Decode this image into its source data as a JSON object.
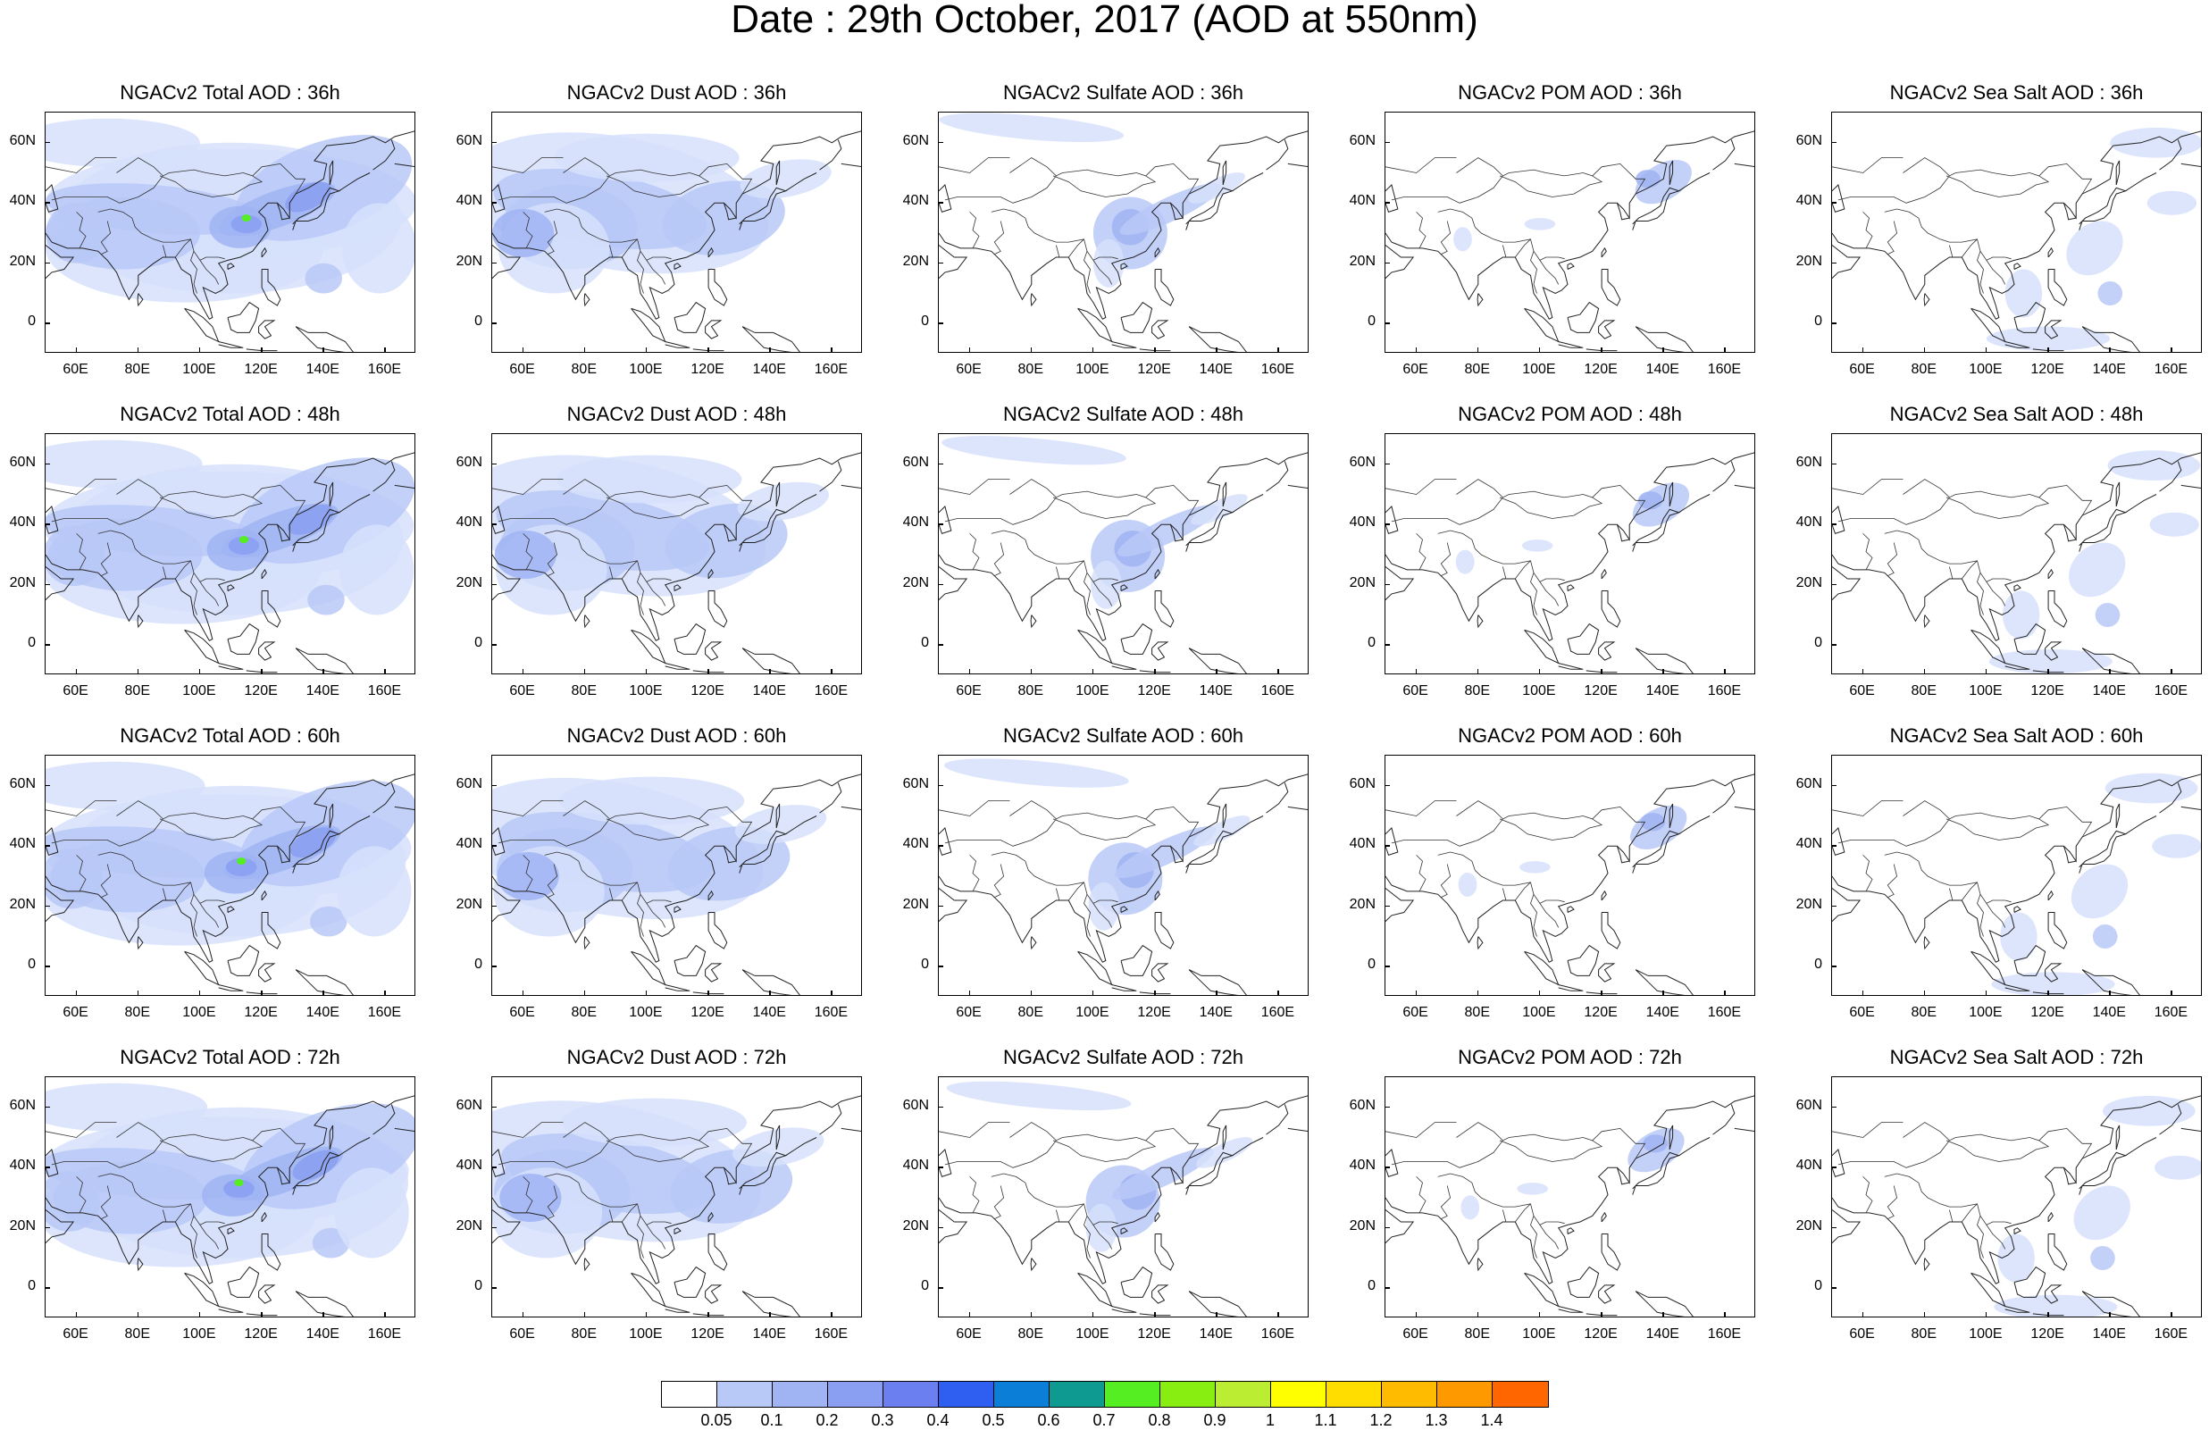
{
  "title": "Date : 29th October, 2017 (AOD at 550nm)",
  "rows": [
    {
      "panels": [
        {
          "title": "NGACv2 Total AOD : 36h",
          "species": "total"
        },
        {
          "title": "NGACv2 Dust AOD : 36h",
          "species": "dust"
        },
        {
          "title": "NGACv2 Sulfate AOD : 36h",
          "species": "sulfate"
        },
        {
          "title": "NGACv2 POM AOD : 36h",
          "species": "pom"
        },
        {
          "title": "NGACv2 Sea Salt AOD : 36h",
          "species": "seasalt"
        }
      ]
    },
    {
      "panels": [
        {
          "title": "NGACv2 Total AOD : 48h",
          "species": "total"
        },
        {
          "title": "NGACv2 Dust AOD : 48h",
          "species": "dust"
        },
        {
          "title": "NGACv2 Sulfate AOD : 48h",
          "species": "sulfate"
        },
        {
          "title": "NGACv2 POM AOD : 48h",
          "species": "pom"
        },
        {
          "title": "NGACv2 Sea Salt AOD : 48h",
          "species": "seasalt"
        }
      ]
    },
    {
      "panels": [
        {
          "title": "NGACv2 Total AOD : 60h",
          "species": "total"
        },
        {
          "title": "NGACv2 Dust AOD : 60h",
          "species": "dust"
        },
        {
          "title": "NGACv2 Sulfate AOD : 60h",
          "species": "sulfate"
        },
        {
          "title": "NGACv2 POM AOD : 60h",
          "species": "pom"
        },
        {
          "title": "NGACv2 Sea Salt AOD : 60h",
          "species": "seasalt"
        }
      ]
    },
    {
      "panels": [
        {
          "title": "NGACv2 Total AOD : 72h",
          "species": "total"
        },
        {
          "title": "NGACv2 Dust AOD : 72h",
          "species": "dust"
        },
        {
          "title": "NGACv2 Sulfate AOD : 72h",
          "species": "sulfate"
        },
        {
          "title": "NGACv2 POM AOD : 72h",
          "species": "pom"
        },
        {
          "title": "NGACv2 Sea Salt  AOD : 72h",
          "species": "seasalt"
        }
      ]
    }
  ],
  "lat_labels": [
    "60N",
    "40N",
    "20N",
    "0"
  ],
  "lon_labels": [
    "60E",
    "80E",
    "100E",
    "120E",
    "140E",
    "160E"
  ],
  "colorbar": {
    "colors": [
      "#ffffff",
      "#d6e0fb",
      "#b8c8f7",
      "#a0b4f3",
      "#8a9ff1",
      "#6b7ff0",
      "#2f5ff0",
      "#0b7fd8",
      "#0e9a90",
      "#55ee22",
      "#88ee11",
      "#bbee33",
      "#ffff00",
      "#ffdd00",
      "#ffbb00",
      "#ff9900",
      "#ff6600",
      "#ff2200"
    ],
    "labels": [
      "0.05",
      "0.1",
      "0.2",
      "0.3",
      "0.4",
      "0.5",
      "0.6",
      "0.7",
      "0.8",
      "0.9",
      "1",
      "1.1",
      "1.2",
      "1.3",
      "1.4"
    ]
  }
}
